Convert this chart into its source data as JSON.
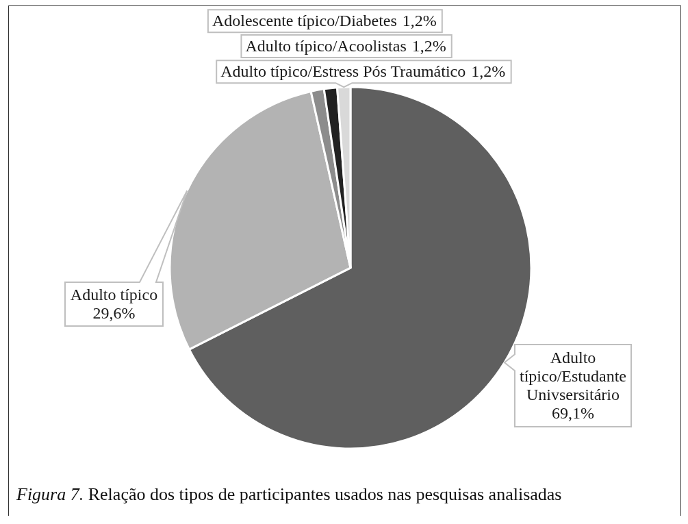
{
  "chart_data": {
    "type": "pie",
    "categories": [
      "Adulto típico/Estudante Univsersitário",
      "Adulto típico",
      "Adolescente típico/Diabetes",
      "Adulto típico/Acoolistas",
      "Adulto típico/Estress Pós Traumático"
    ],
    "values": [
      69.1,
      29.6,
      1.2,
      1.2,
      1.2
    ],
    "colors": [
      "#5f5f5f",
      "#b3b3b3",
      "#8c8c8c",
      "#222222",
      "#d9d9d9"
    ],
    "value_labels": [
      "69,1%",
      "29,6%",
      "1,2%",
      "1,2%",
      "1,2%"
    ],
    "annotations": [
      "Figura 7.",
      "Relação dos tipos de participantes usados nas pesquisas analisadas"
    ]
  }
}
